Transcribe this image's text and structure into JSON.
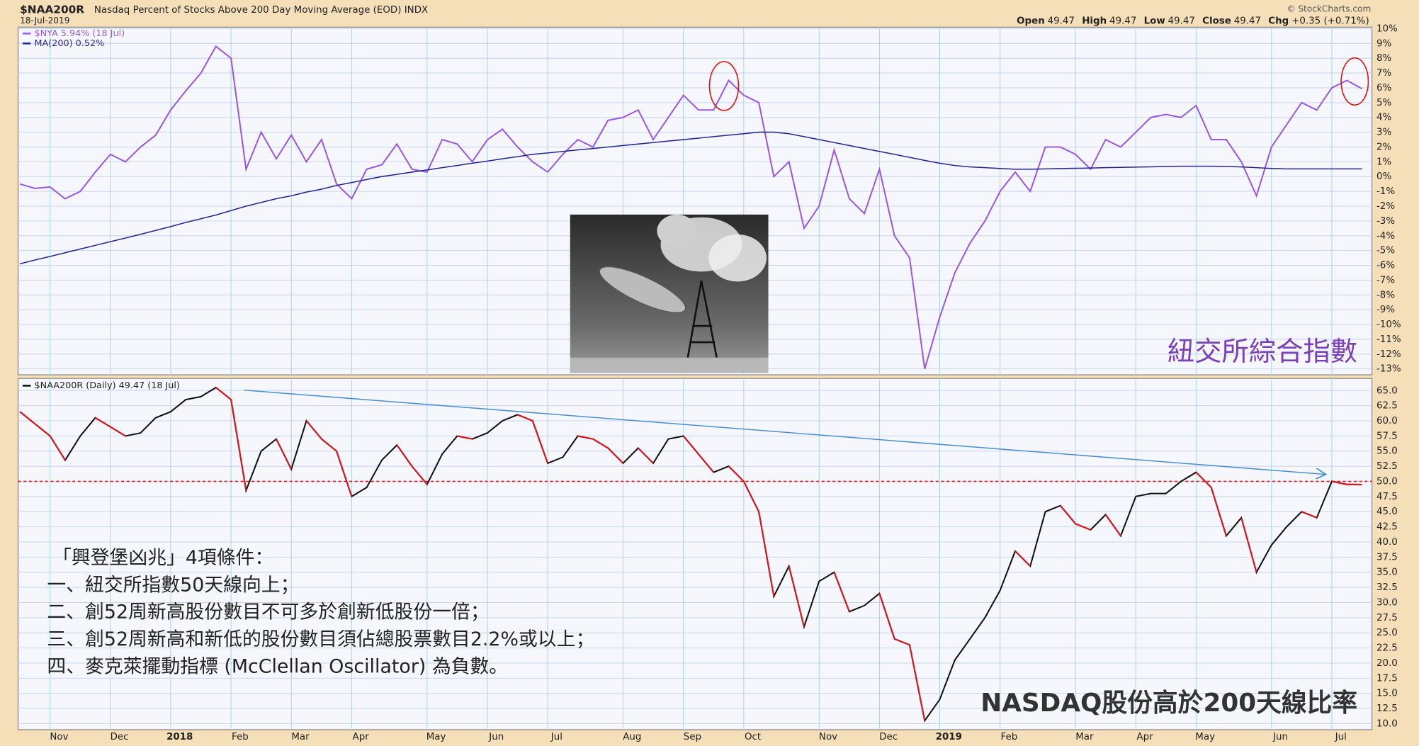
{
  "header": {
    "symbol": "$NAA200R",
    "description": "Nasdaq Percent of Stocks Above 200 Day Moving Average (EOD) INDX",
    "date": "18-Jul-2019",
    "copyright": "© StockCharts.com",
    "quote": [
      "Open",
      "49.47",
      "High",
      "49.47",
      "Low",
      "49.47",
      "Close",
      "49.47",
      "Chg",
      "+0.35 (+0.71%)"
    ]
  },
  "chart_data": [
    {
      "type": "line",
      "annotation": "紐交所綜合指數",
      "ylim": [
        -13.4,
        10.1
      ],
      "yticks": [
        {
          "value": 10,
          "label": "10%"
        },
        {
          "value": 9,
          "label": "9%"
        },
        {
          "value": 8,
          "label": "8%"
        },
        {
          "value": 7,
          "label": "7%"
        },
        {
          "value": 6,
          "label": "6%"
        },
        {
          "value": 5,
          "label": "5%"
        },
        {
          "value": 4,
          "label": "4%"
        },
        {
          "value": 3,
          "label": "3%"
        },
        {
          "value": 2,
          "label": "2%"
        },
        {
          "value": 1,
          "label": "1%"
        },
        {
          "value": 0,
          "label": "0%"
        },
        {
          "value": -1,
          "label": "-1%"
        },
        {
          "value": -2,
          "label": "-2%"
        },
        {
          "value": -3,
          "label": "-3%"
        },
        {
          "value": -4,
          "label": "-4%"
        },
        {
          "value": -5,
          "label": "-5%"
        },
        {
          "value": -6,
          "label": "-6%"
        },
        {
          "value": -7,
          "label": "-7%"
        },
        {
          "value": -8,
          "label": "-8%"
        },
        {
          "value": -9,
          "label": "-9%"
        },
        {
          "value": -10,
          "label": "-10%"
        },
        {
          "value": -11,
          "label": "-11%"
        },
        {
          "value": -12,
          "label": "-12%"
        },
        {
          "value": -13,
          "label": "-13%"
        }
      ],
      "grid": true,
      "series": [
        {
          "name": "$NYA 5.94% (18 Jul)",
          "color": "#9a5ae0",
          "values": [
            -0.5,
            -0.8,
            -0.7,
            -1.5,
            -1.0,
            0.3,
            1.5,
            1.0,
            2.0,
            2.8,
            4.5,
            5.8,
            7.0,
            8.8,
            8.0,
            0.5,
            3.0,
            1.2,
            2.8,
            1.0,
            2.5,
            -0.5,
            -1.5,
            0.5,
            0.8,
            2.2,
            0.5,
            0.3,
            2.5,
            2.2,
            1.0,
            2.5,
            3.2,
            2.0,
            1.0,
            0.3,
            1.5,
            2.5,
            2.0,
            3.8,
            4.0,
            4.5,
            2.5,
            4.0,
            5.5,
            4.5,
            4.5,
            6.5,
            5.5,
            5.0,
            0,
            1.0,
            -3.5,
            -2.0,
            1.8,
            -1.5,
            -2.5,
            0.5,
            -4.0,
            -5.5,
            -13.0,
            -9.5,
            -6.5,
            -4.5,
            -3.0,
            -1.0,
            0.3,
            -1.0,
            2.0,
            2.0,
            1.5,
            0.5,
            2.5,
            2.0,
            3.0,
            4.0,
            4.2,
            4.0,
            4.8,
            2.5,
            2.5,
            1.0,
            -1.3,
            2.0,
            3.5,
            5.0,
            4.5,
            6.0,
            6.5,
            5.94
          ]
        },
        {
          "name": "MA(200) 0.52%",
          "color": "#262690",
          "values": [
            -5.9,
            -5.64,
            -5.4,
            -5.15,
            -4.9,
            -4.65,
            -4.4,
            -4.15,
            -3.9,
            -3.64,
            -3.38,
            -3.1,
            -2.85,
            -2.6,
            -2.3,
            -2.0,
            -1.75,
            -1.5,
            -1.3,
            -1.05,
            -0.85,
            -0.6,
            -0.4,
            -0.2,
            0,
            0.15,
            0.3,
            0.45,
            0.6,
            0.75,
            0.9,
            1.05,
            1.2,
            1.35,
            1.5,
            1.6,
            1.7,
            1.8,
            1.9,
            2.0,
            2.1,
            2.2,
            2.3,
            2.4,
            2.5,
            2.6,
            2.7,
            2.8,
            2.9,
            3.0,
            3.0,
            2.9,
            2.7,
            2.5,
            2.3,
            2.1,
            1.9,
            1.7,
            1.5,
            1.3,
            1.1,
            0.9,
            0.75,
            0.65,
            0.6,
            0.55,
            0.5,
            0.5,
            0.52,
            0.54,
            0.56,
            0.58,
            0.6,
            0.62,
            0.64,
            0.66,
            0.68,
            0.7,
            0.7,
            0.7,
            0.68,
            0.65,
            0.6,
            0.55,
            0.52,
            0.52,
            0.52,
            0.52,
            0.52,
            0.52
          ]
        }
      ]
    },
    {
      "type": "line",
      "annotation": "NASDAQ股份高於200天線比率",
      "note": [
        "「興登堡凶兆」4項條件：",
        "一、紐交所指數50天線向上；",
        "二、創52周新高股份數目不可多於創新低股份一倍；",
        "三、創52周新高和新低的股份數目須佔總股票數目2.2%或以上；",
        "四、麥克萊擺動指標 (McClellan Oscillator) 為負數。"
      ],
      "categories": [
        null,
        null,
        "Nov",
        null,
        null,
        null,
        "Dec",
        null,
        null,
        null,
        "2018",
        null,
        null,
        null,
        "Feb",
        null,
        null,
        null,
        "Mar",
        null,
        null,
        null,
        "Apr",
        null,
        null,
        null,
        null,
        "May",
        null,
        null,
        null,
        "Jun",
        null,
        null,
        null,
        "Jul",
        null,
        null,
        null,
        null,
        "Aug",
        null,
        null,
        null,
        "Sep",
        null,
        null,
        null,
        "Oct",
        null,
        null,
        null,
        null,
        "Nov",
        null,
        null,
        null,
        "Dec",
        null,
        null,
        null,
        "2019",
        null,
        null,
        null,
        "Feb",
        null,
        null,
        null,
        null,
        "Mar",
        null,
        null,
        null,
        "Apr",
        null,
        null,
        null,
        "May",
        null,
        null,
        null,
        null,
        "Jun",
        null,
        null,
        null,
        "Jul",
        null,
        null
      ],
      "ylim": [
        9,
        67
      ],
      "yticks": [
        {
          "value": 65,
          "label": "65.0"
        },
        {
          "value": 62.5,
          "label": "62.5"
        },
        {
          "value": 60,
          "label": "60.0"
        },
        {
          "value": 57.5,
          "label": "57.5"
        },
        {
          "value": 55,
          "label": "55.0"
        },
        {
          "value": 52.5,
          "label": "52.5"
        },
        {
          "value": 50,
          "label": "50.0"
        },
        {
          "value": 47.5,
          "label": "47.5"
        },
        {
          "value": 45,
          "label": "45.0"
        },
        {
          "value": 42.5,
          "label": "42.5"
        },
        {
          "value": 40,
          "label": "40.0"
        },
        {
          "value": 37.5,
          "label": "37.5"
        },
        {
          "value": 35,
          "label": "35.0"
        },
        {
          "value": 32.5,
          "label": "32.5"
        },
        {
          "value": 30,
          "label": "30.0"
        },
        {
          "value": 27.5,
          "label": "27.5"
        },
        {
          "value": 25,
          "label": "25.0"
        },
        {
          "value": 22.5,
          "label": "22.5"
        },
        {
          "value": 20,
          "label": "20.0"
        },
        {
          "value": 17.5,
          "label": "17.5"
        },
        {
          "value": 15,
          "label": "15.0"
        },
        {
          "value": 12.5,
          "label": "12.5"
        },
        {
          "value": 10,
          "label": "10.0"
        }
      ],
      "grid": true,
      "reference_line": 50,
      "reference_color": "#e01818",
      "series": [
        {
          "name": "$NAA200R (Daily) 49.47 (18 Jul)",
          "color": "#111111",
          "fall_color": "#e0141e",
          "values": [
            61.5,
            59.5,
            57.5,
            53.5,
            57.5,
            60.5,
            59.0,
            57.5,
            58.0,
            60.5,
            61.5,
            63.5,
            64.0,
            65.5,
            63.5,
            48.5,
            55.0,
            57.0,
            52.0,
            60.0,
            57.0,
            55.0,
            47.5,
            49.0,
            53.5,
            56.0,
            52.5,
            49.5,
            54.5,
            57.5,
            57.0,
            58.0,
            60.0,
            61.0,
            60.0,
            53.0,
            54.0,
            57.5,
            57.0,
            55.5,
            53.0,
            55.5,
            53.0,
            57.0,
            57.5,
            54.5,
            51.5,
            52.5,
            50.0,
            45.0,
            31.0,
            36.0,
            26.0,
            33.5,
            35.0,
            28.5,
            29.5,
            31.5,
            24.0,
            23.0,
            10.5,
            14.0,
            20.5,
            24.0,
            27.5,
            32.0,
            38.5,
            36.0,
            45.0,
            46.0,
            43.0,
            42.0,
            44.5,
            41.0,
            47.5,
            48.0,
            48.0,
            50.0,
            51.5,
            49.0,
            41.0,
            44.0,
            35.0,
            39.5,
            42.5,
            45.0,
            44.0,
            50.0,
            49.5,
            49.47
          ]
        }
      ]
    }
  ]
}
